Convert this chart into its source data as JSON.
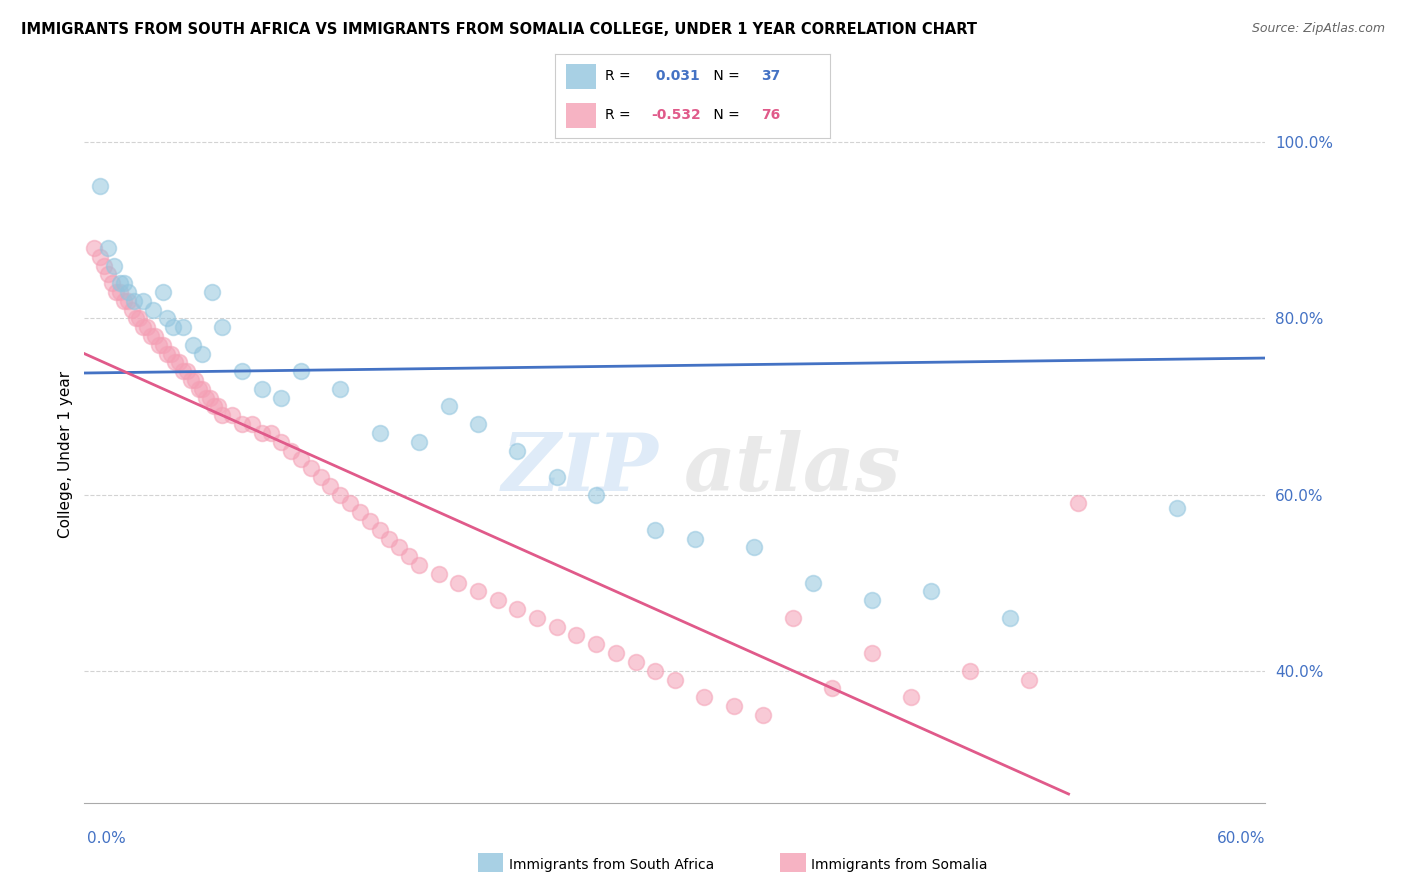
{
  "title": "IMMIGRANTS FROM SOUTH AFRICA VS IMMIGRANTS FROM SOMALIA COLLEGE, UNDER 1 YEAR CORRELATION CHART",
  "source": "Source: ZipAtlas.com",
  "ylabel": "College, Under 1 year",
  "r_south_africa": 0.031,
  "n_south_africa": 37,
  "r_somalia": -0.532,
  "n_somalia": 76,
  "x_min": 0.0,
  "x_max": 0.6,
  "y_min": 0.25,
  "y_max": 1.04,
  "yticks": [
    0.4,
    0.6,
    0.8,
    1.0
  ],
  "color_south_africa": "#92c5de",
  "color_somalia": "#f4a0b5",
  "trendline_south_africa": "#4472c4",
  "trendline_somalia": "#e05a8a",
  "south_africa_x": [
    0.008,
    0.012,
    0.015,
    0.018,
    0.02,
    0.022,
    0.025,
    0.03,
    0.035,
    0.04,
    0.042,
    0.045,
    0.05,
    0.055,
    0.06,
    0.065,
    0.07,
    0.08,
    0.09,
    0.1,
    0.11,
    0.13,
    0.15,
    0.17,
    0.185,
    0.2,
    0.22,
    0.24,
    0.26,
    0.29,
    0.31,
    0.34,
    0.37,
    0.4,
    0.43,
    0.47,
    0.555
  ],
  "south_africa_y": [
    0.95,
    0.88,
    0.86,
    0.84,
    0.84,
    0.83,
    0.82,
    0.82,
    0.81,
    0.83,
    0.8,
    0.79,
    0.79,
    0.77,
    0.76,
    0.83,
    0.79,
    0.74,
    0.72,
    0.71,
    0.74,
    0.72,
    0.67,
    0.66,
    0.7,
    0.68,
    0.65,
    0.62,
    0.6,
    0.56,
    0.55,
    0.54,
    0.5,
    0.48,
    0.49,
    0.46,
    0.585
  ],
  "somalia_x": [
    0.005,
    0.008,
    0.01,
    0.012,
    0.014,
    0.016,
    0.018,
    0.02,
    0.022,
    0.024,
    0.026,
    0.028,
    0.03,
    0.032,
    0.034,
    0.036,
    0.038,
    0.04,
    0.042,
    0.044,
    0.046,
    0.048,
    0.05,
    0.052,
    0.054,
    0.056,
    0.058,
    0.06,
    0.062,
    0.064,
    0.066,
    0.068,
    0.07,
    0.075,
    0.08,
    0.085,
    0.09,
    0.095,
    0.1,
    0.105,
    0.11,
    0.115,
    0.12,
    0.125,
    0.13,
    0.135,
    0.14,
    0.145,
    0.15,
    0.155,
    0.16,
    0.165,
    0.17,
    0.18,
    0.19,
    0.2,
    0.21,
    0.22,
    0.23,
    0.24,
    0.25,
    0.26,
    0.27,
    0.28,
    0.29,
    0.3,
    0.315,
    0.33,
    0.345,
    0.36,
    0.38,
    0.4,
    0.42,
    0.45,
    0.48,
    0.505
  ],
  "somalia_y": [
    0.88,
    0.87,
    0.86,
    0.85,
    0.84,
    0.83,
    0.83,
    0.82,
    0.82,
    0.81,
    0.8,
    0.8,
    0.79,
    0.79,
    0.78,
    0.78,
    0.77,
    0.77,
    0.76,
    0.76,
    0.75,
    0.75,
    0.74,
    0.74,
    0.73,
    0.73,
    0.72,
    0.72,
    0.71,
    0.71,
    0.7,
    0.7,
    0.69,
    0.69,
    0.68,
    0.68,
    0.67,
    0.67,
    0.66,
    0.65,
    0.64,
    0.63,
    0.62,
    0.61,
    0.6,
    0.59,
    0.58,
    0.57,
    0.56,
    0.55,
    0.54,
    0.53,
    0.52,
    0.51,
    0.5,
    0.49,
    0.48,
    0.47,
    0.46,
    0.45,
    0.44,
    0.43,
    0.42,
    0.41,
    0.4,
    0.39,
    0.37,
    0.36,
    0.35,
    0.46,
    0.38,
    0.42,
    0.37,
    0.4,
    0.39,
    0.59
  ],
  "trendline_sa_x0": 0.0,
  "trendline_sa_y0": 0.738,
  "trendline_sa_x1": 0.6,
  "trendline_sa_y1": 0.755,
  "trendline_som_x0": 0.0,
  "trendline_som_y0": 0.76,
  "trendline_som_x1": 0.5,
  "trendline_som_y1": 0.26
}
